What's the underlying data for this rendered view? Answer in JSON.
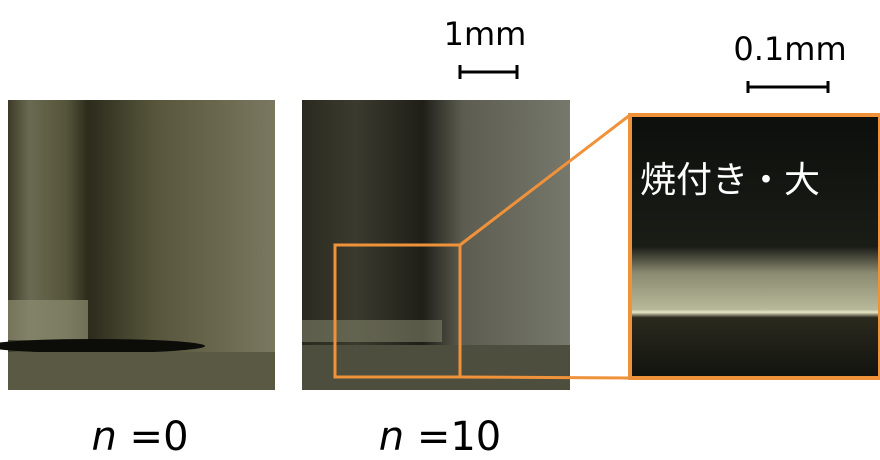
{
  "scale_bars": [
    {
      "label": "1mm"
    },
    {
      "label": "0.1mm"
    }
  ],
  "annotation": "焼付き・大",
  "panels": [
    {
      "variable": "n",
      "value_text": "=0"
    },
    {
      "variable": "n",
      "value_text": "=10"
    }
  ]
}
